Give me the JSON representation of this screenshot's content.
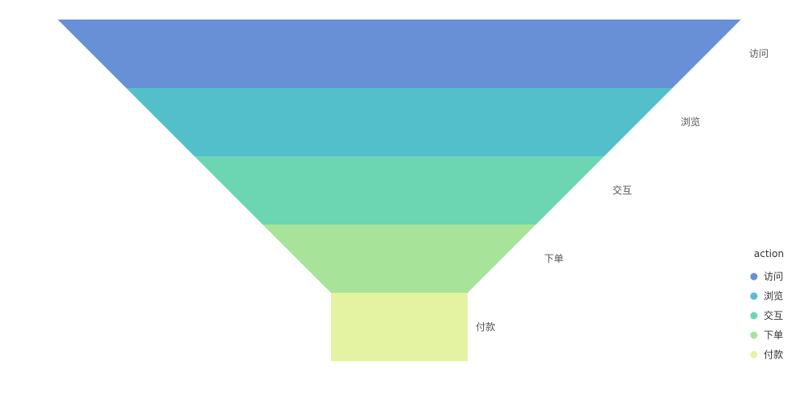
{
  "chart_data": {
    "type": "funnel",
    "categories": [
      "访问",
      "浏览",
      "交互",
      "下单",
      "付款"
    ],
    "values": [
      100,
      80,
      60,
      40,
      20
    ],
    "colors": [
      "#6790d6",
      "#53bfca",
      "#6bd6b1",
      "#a7e499",
      "#e4f3a2"
    ],
    "legend": {
      "title": "action",
      "position": "right"
    }
  }
}
